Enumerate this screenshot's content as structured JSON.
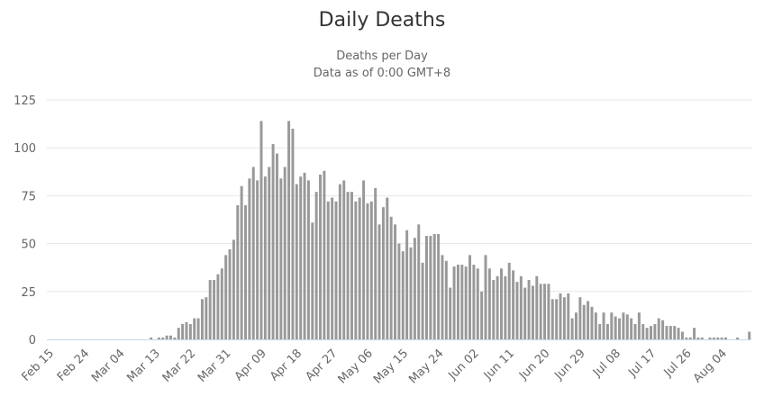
{
  "chart_data": {
    "type": "bar",
    "title": "Daily Deaths",
    "subtitle": [
      "Deaths per Day",
      "Data as of 0:00 GMT+8"
    ],
    "xlabel": "",
    "ylabel": "",
    "ylim": [
      0,
      125
    ],
    "y_ticks": [
      "0",
      "25",
      "50",
      "75",
      "100",
      "125"
    ],
    "grid": true,
    "start_date": "Feb 15",
    "x_tick_every_days": 9,
    "x_ticks": [
      "Feb 15",
      "Feb 24",
      "Mar 04",
      "Mar 13",
      "Mar 22",
      "Mar 31",
      "Apr 09",
      "Apr 18",
      "Apr 27",
      "May 06",
      "May 15",
      "May 24",
      "Jun 02",
      "Jun 11",
      "Jun 20",
      "Jun 29",
      "Jul 08",
      "Jul 17",
      "Jul 26",
      "Aug 04"
    ],
    "bar_color": "#999999",
    "series": [
      {
        "name": "Deaths per Day",
        "values": [
          0,
          0,
          0,
          0,
          0,
          0,
          0,
          0,
          0,
          0,
          0,
          0,
          0,
          0,
          0,
          0,
          0,
          0,
          0,
          0,
          0,
          0,
          0,
          0,
          0,
          0,
          1,
          0,
          1,
          1,
          2,
          2,
          1,
          6,
          8,
          9,
          8,
          11,
          11,
          21,
          22,
          31,
          31,
          34,
          37,
          44,
          47,
          52,
          70,
          80,
          70,
          84,
          90,
          83,
          114,
          85,
          90,
          102,
          97,
          84,
          90,
          114,
          110,
          81,
          85,
          87,
          83,
          61,
          77,
          86,
          88,
          72,
          74,
          72,
          81,
          83,
          77,
          77,
          72,
          74,
          83,
          71,
          72,
          79,
          60,
          69,
          74,
          64,
          60,
          50,
          46,
          57,
          48,
          53,
          60,
          40,
          54,
          54,
          55,
          55,
          44,
          41,
          27,
          38,
          39,
          39,
          38,
          44,
          39,
          37,
          25,
          44,
          37,
          31,
          33,
          37,
          33,
          40,
          36,
          30,
          33,
          27,
          31,
          28,
          33,
          29,
          29,
          29,
          21,
          21,
          24,
          22,
          24,
          11,
          14,
          22,
          18,
          20,
          17,
          14,
          8,
          14,
          8,
          14,
          12,
          11,
          14,
          13,
          11,
          8,
          14,
          8,
          6,
          7,
          8,
          11,
          10,
          7,
          7,
          7,
          6,
          4,
          1,
          1,
          6,
          1,
          1,
          0,
          1,
          1,
          1,
          1,
          1,
          0,
          0,
          1,
          0,
          0,
          4
        ]
      }
    ]
  }
}
